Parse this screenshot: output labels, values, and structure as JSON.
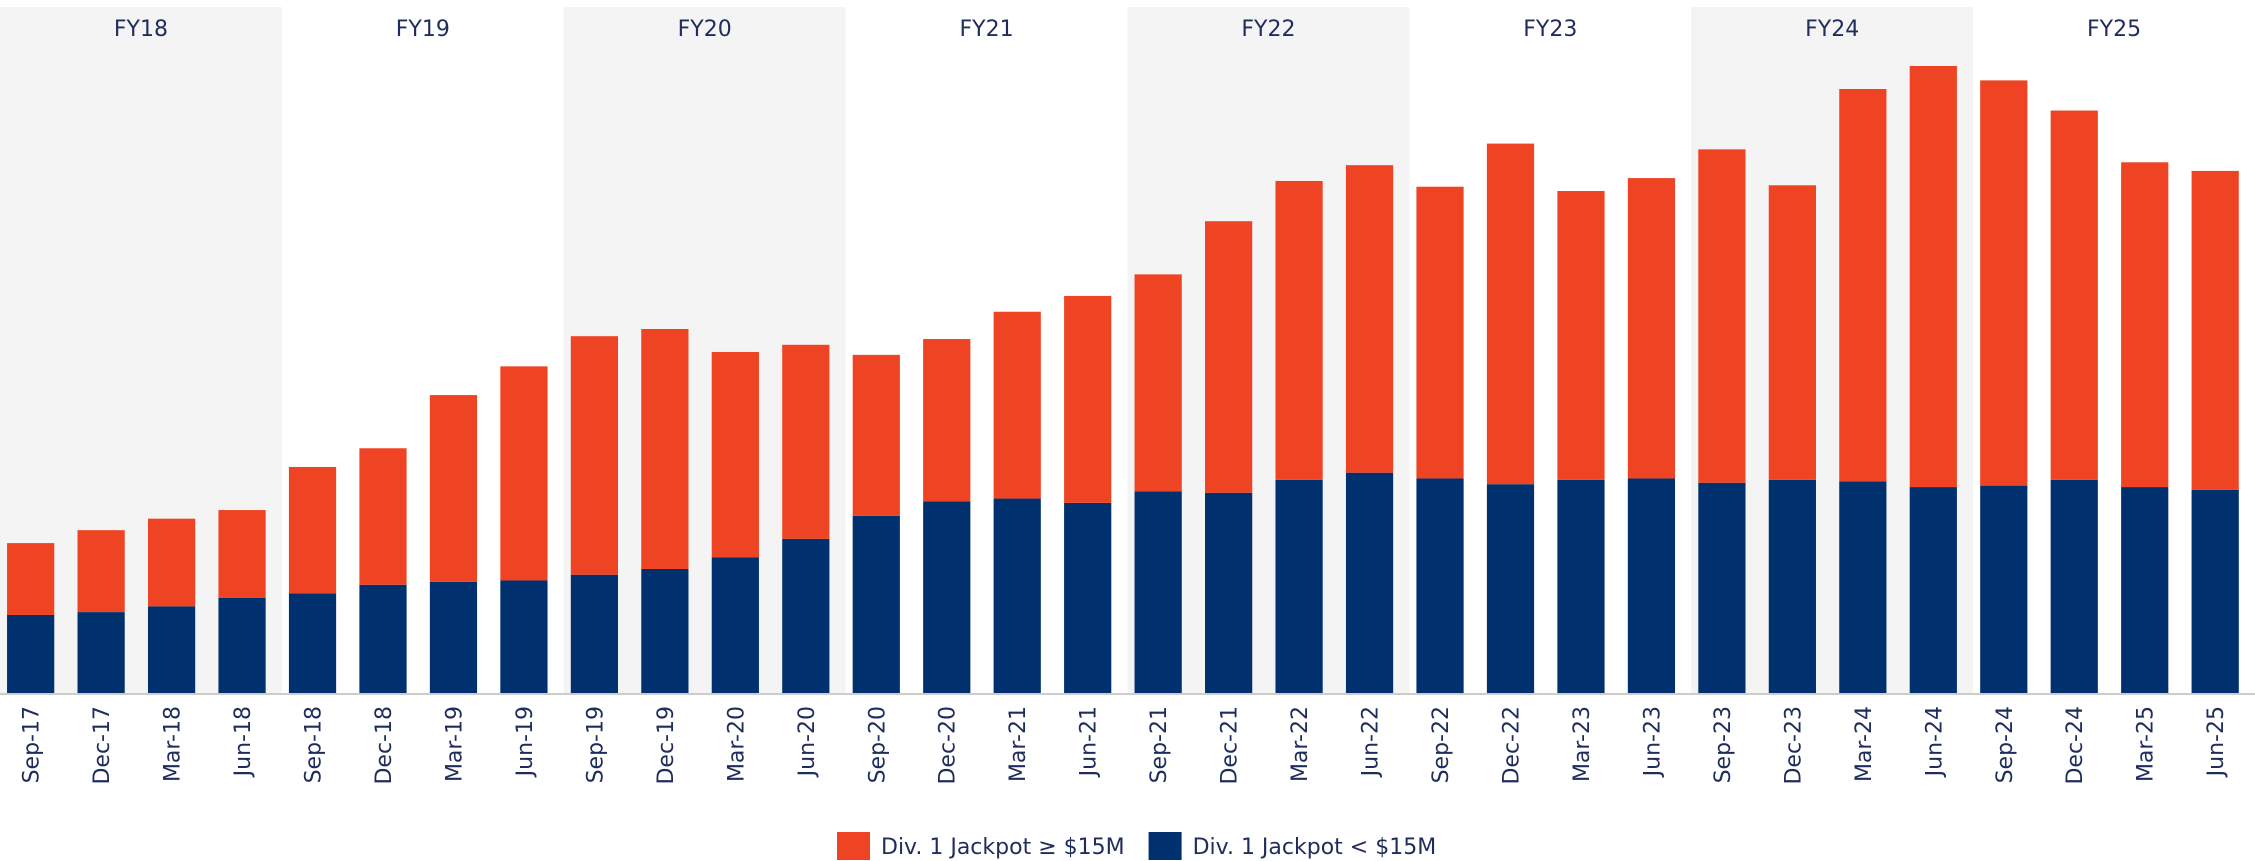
{
  "chart_data": {
    "type": "stacked_bar",
    "categories": [
      "Sep-17",
      "Dec-17",
      "Mar-18",
      "Jun-18",
      "Sep-18",
      "Dec-18",
      "Mar-19",
      "Jun-19",
      "Sep-19",
      "Dec-19",
      "Mar-20",
      "Jun-20",
      "Sep-20",
      "Dec-20",
      "Mar-21",
      "Jun-21",
      "Sep-21",
      "Dec-21",
      "Mar-22",
      "Jun-22",
      "Sep-22",
      "Dec-22",
      "Mar-23",
      "Jun-23",
      "Sep-23",
      "Dec-23",
      "Mar-24",
      "Jun-24",
      "Sep-24",
      "Dec-24",
      "Mar-25",
      "Jun-25"
    ],
    "fiscal_years": [
      "FY18",
      "FY19",
      "FY20",
      "FY21",
      "FY22",
      "FY23",
      "FY24",
      "FY25"
    ],
    "series": [
      {
        "name": "Div. 1 Jackpot ≥ $15M",
        "color": "#ee4423",
        "values": [
          50,
          57,
          61,
          61,
          88,
          95,
          130,
          149,
          166,
          167,
          143,
          135,
          112,
          113,
          130,
          144,
          151,
          189,
          208,
          214,
          203,
          237,
          201,
          209,
          232,
          205,
          273,
          293,
          282,
          257,
          226,
          222
        ]
      },
      {
        "name": "Div. 1 Jackpot < $15M",
        "color": "#00306e",
        "values": [
          55,
          57,
          61,
          67,
          70,
          76,
          78,
          79,
          83,
          87,
          95,
          108,
          124,
          134,
          136,
          133,
          141,
          140,
          149,
          154,
          150,
          146,
          149,
          150,
          147,
          149,
          148,
          144,
          145,
          149,
          144,
          142
        ]
      }
    ]
  }
}
